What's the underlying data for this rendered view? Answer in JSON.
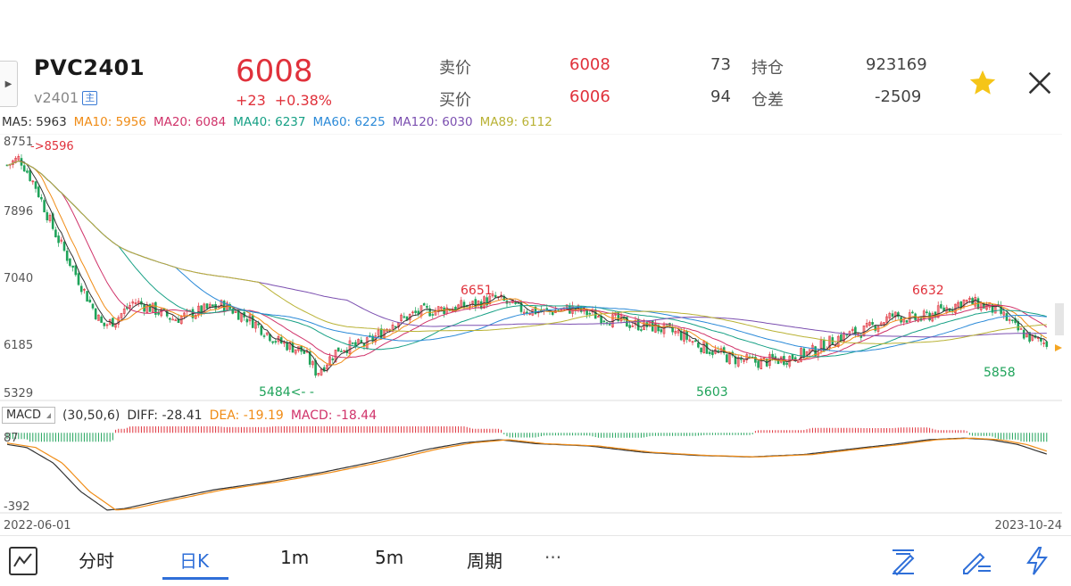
{
  "header": {
    "symbol": "PVC2401",
    "subcode": "v2401",
    "main_badge": "主",
    "last_price": "6008",
    "change": "+23",
    "change_pct": "+0.38%"
  },
  "quotes": {
    "ask_label": "卖价",
    "ask_price": "6008",
    "ask_vol": "73",
    "oi_label": "持仓",
    "oi_value": "923169",
    "bid_label": "买价",
    "bid_price": "6006",
    "bid_vol": "94",
    "oi_diff_label": "仓差",
    "oi_diff_value": "-2509"
  },
  "colors": {
    "up": "#e0313b",
    "down": "#1fa35a",
    "accent": "#2f6fd8",
    "star": "#f5c518"
  },
  "ma_legend": [
    {
      "text": "MA5: 5963",
      "color": "#333333"
    },
    {
      "text": "MA10: 5956",
      "color": "#f08c16"
    },
    {
      "text": "MA20: 6084",
      "color": "#d0336a"
    },
    {
      "text": "MA40: 6237",
      "color": "#16a085"
    },
    {
      "text": "MA60: 6225",
      "color": "#2b8ad8"
    },
    {
      "text": "MA120: 6030",
      "color": "#7b4fb0"
    },
    {
      "text": "MA89: 6112",
      "color": "#b9b235"
    }
  ],
  "price_axis": [
    "8751",
    "7896",
    "7040",
    "6185",
    "5329"
  ],
  "annotations": {
    "high_start": "->8596",
    "low1": "5484<- -",
    "peak1": "6651",
    "low2": "5603",
    "peak2": "6632",
    "last_low": "5858"
  },
  "macd": {
    "button": "MACD",
    "params": "(30,50,6)",
    "diff": "DIFF: -28.41",
    "dea": "DEA: -19.19",
    "macd": "MACD: -18.44",
    "axis_top": "87",
    "axis_bottom": "-392"
  },
  "dates": {
    "start": "2022-06-01",
    "end": "2023-10-24"
  },
  "toolbar": {
    "items": [
      "分时",
      "日K",
      "1m",
      "5m",
      "周期",
      "···"
    ],
    "icons": [
      "chart-toggle-icon",
      "draw-line-icon",
      "draw-edit-icon",
      "flash-icon"
    ]
  }
}
